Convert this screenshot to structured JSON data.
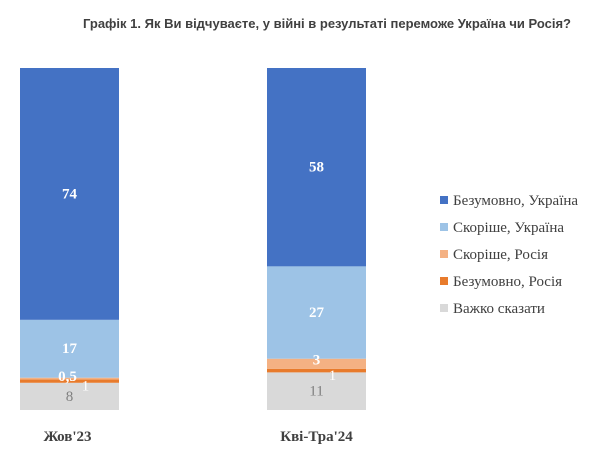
{
  "chart_data": {
    "type": "bar",
    "stacked": true,
    "title": "Графік 1. Як Ви відчуваєте, у війні в результаті переможе Україна чи Росія?",
    "categories": [
      "Жов'23",
      "Кві-Тра'24"
    ],
    "series": [
      {
        "name": "Важко сказати",
        "values": [
          8,
          11
        ],
        "labels": [
          "8",
          "11"
        ],
        "color": "#d9d9d9",
        "label_color": "#7f7f7f"
      },
      {
        "name": "Безумовно, Росія",
        "values": [
          1,
          1
        ],
        "labels": [
          "1",
          "1"
        ],
        "color": "#e87b2c",
        "label_color": "#ffffff"
      },
      {
        "name": "Скоріше, Росія",
        "values": [
          0.5,
          3
        ],
        "labels": [
          "0,5",
          "3"
        ],
        "color": "#f4b183",
        "label_color": "#ffffff"
      },
      {
        "name": "Скоріше, Україна",
        "values": [
          17,
          27
        ],
        "labels": [
          "17",
          "27"
        ],
        "color": "#9dc3e6",
        "label_color": "#ffffff"
      },
      {
        "name": "Безумовно, Україна",
        "values": [
          74,
          58
        ],
        "labels": [
          "74",
          "58"
        ],
        "color": "#4472c4",
        "label_color": "#ffffff"
      }
    ],
    "legend": {
      "position": "right",
      "order": [
        "Безумовно, Україна",
        "Скоріше, Україна",
        "Скоріше, Росія",
        "Безумовно, Росія",
        "Важко сказати"
      ]
    },
    "ylim": [
      0,
      100
    ],
    "grid": false
  }
}
